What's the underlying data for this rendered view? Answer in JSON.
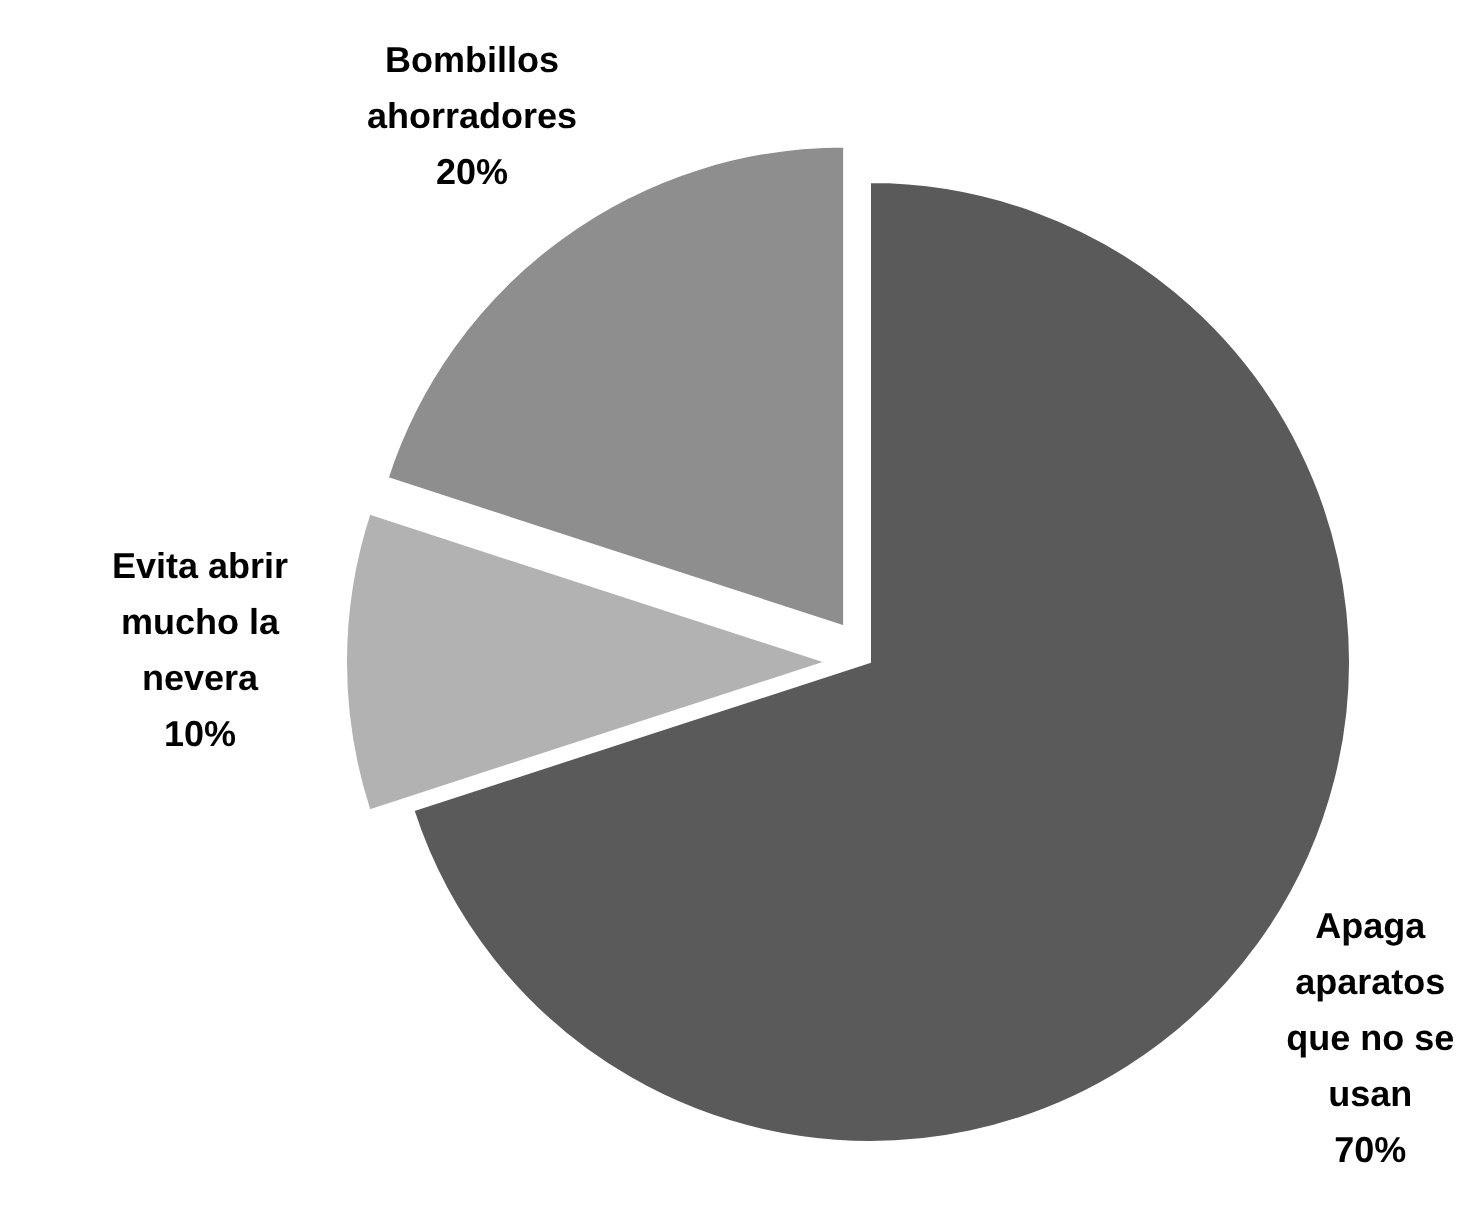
{
  "chart_data": {
    "type": "pie",
    "categories": [
      "Apaga aparatos que no se usan",
      "Evita abrir mucho la nevera",
      "Bombillos ahorradores"
    ],
    "values": [
      70,
      10,
      20
    ],
    "value_labels": [
      "70%",
      "10%",
      "20%"
    ],
    "colors": [
      "#5a5a5a",
      "#b2b2b2",
      "#8e8e8e"
    ]
  }
}
